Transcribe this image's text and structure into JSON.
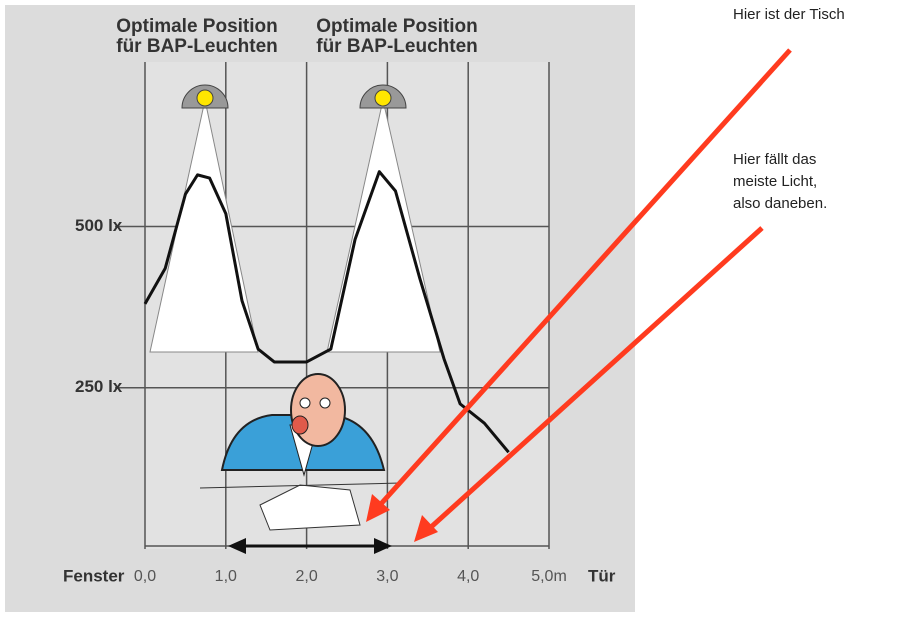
{
  "chart_data": {
    "type": "line",
    "titles": [
      [
        "Optimale Position",
        "für BAP-Leuchten"
      ],
      [
        "Optimale Position",
        "für BAP-Leuchten"
      ]
    ],
    "x": [
      0,
      0.25,
      0.5,
      0.65,
      0.8,
      1.0,
      1.2,
      1.4,
      1.6,
      2.0,
      2.3,
      2.6,
      2.9,
      3.1,
      3.4,
      3.7,
      3.9,
      4.2,
      4.5
    ],
    "values": [
      380,
      435,
      550,
      580,
      575,
      520,
      385,
      310,
      290,
      290,
      310,
      480,
      585,
      555,
      420,
      295,
      225,
      195,
      150
    ],
    "color": "#111111",
    "xlim": [
      0,
      5
    ],
    "ylim": [
      0,
      755
    ],
    "xticks": [
      {
        "value": 0,
        "label": "0,0"
      },
      {
        "value": 1,
        "label": "1,0"
      },
      {
        "value": 2,
        "label": "2,0"
      },
      {
        "value": 3,
        "label": "3,0"
      },
      {
        "value": 4,
        "label": "4,0"
      },
      {
        "value": 5,
        "label": "5,0m"
      }
    ],
    "yticks": [
      {
        "value": 250,
        "label": "250 lx"
      },
      {
        "value": 500,
        "label": "500 lx"
      }
    ],
    "x_label_left": "Fenster",
    "x_label_right": "Tür",
    "annotations": [
      [
        "Hier ist der Tisch"
      ],
      [
        "Hier fällt das",
        "meiste Licht,",
        "also daneben."
      ]
    ]
  }
}
